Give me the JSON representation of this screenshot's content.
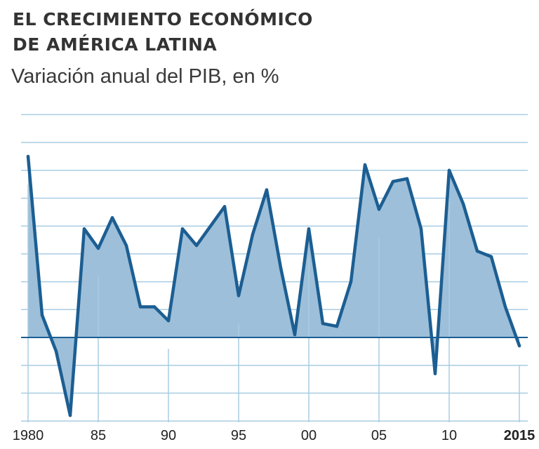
{
  "title_line1": "EL CRECIMIENTO ECONÓMICO",
  "title_line2": "DE AMÉRICA LATINA",
  "subtitle": "Variación anual del PIB, en %",
  "chart_data": {
    "type": "area",
    "x": [
      1980,
      1981,
      1982,
      1983,
      1984,
      1985,
      1986,
      1987,
      1988,
      1989,
      1990,
      1991,
      1992,
      1993,
      1994,
      1995,
      1996,
      1997,
      1998,
      1999,
      2000,
      2001,
      2002,
      2003,
      2004,
      2005,
      2006,
      2007,
      2008,
      2009,
      2010,
      2011,
      2012,
      2013,
      2014,
      2015
    ],
    "series": [
      {
        "values": [
          6.5,
          0.8,
          -0.5,
          -2.8,
          3.9,
          3.2,
          4.3,
          3.3,
          1.1,
          1.1,
          0.6,
          3.9,
          3.3,
          4.0,
          4.7,
          1.5,
          3.7,
          5.3,
          2.5,
          0.1,
          3.9,
          0.5,
          0.4,
          2.0,
          6.2,
          4.6,
          5.6,
          5.7,
          3.9,
          -1.3,
          6.0,
          4.8,
          3.1,
          2.9,
          1.1,
          -0.3
        ]
      }
    ],
    "x_ticks": [
      "1980",
      "85",
      "90",
      "95",
      "00",
      "05",
      "10",
      "2015"
    ],
    "ylim": [
      -3,
      8
    ],
    "grid": true,
    "colors": {
      "line": "#1c5e92",
      "fill": "#9dbfd9",
      "grid": "#a9cde3",
      "zero": "#1c5e92"
    }
  }
}
